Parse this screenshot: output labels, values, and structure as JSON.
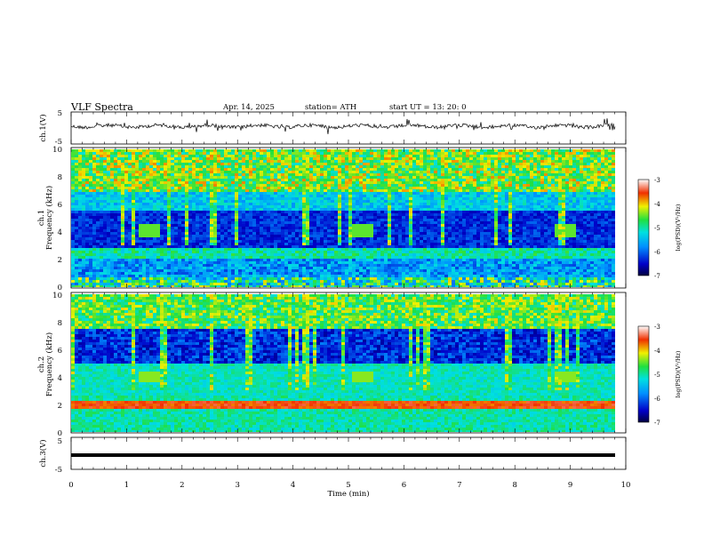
{
  "header": {
    "title": "VLF Spectra",
    "date": "Apr. 14, 2025",
    "station": "station= ATH",
    "start": "start  UT  =   13: 20: 0"
  },
  "chart_data": [
    {
      "type": "line",
      "panel": "ch1-waveform",
      "ylabel": "ch.1(V)",
      "ylim": [
        -5,
        5
      ],
      "yticks": [
        "5",
        "-5"
      ],
      "xlim": [
        0,
        10
      ],
      "series": [
        {
          "values_note": "noisy trace around 0 V",
          "color": "#000000"
        }
      ]
    },
    {
      "type": "heatmap",
      "panel": "ch1-spectrogram",
      "ylabel": "ch.1\nFrequency (kHz)",
      "ylabel_line1": "ch.1",
      "ylabel_line2": "Frequency (kHz)",
      "ylim": [
        0,
        10
      ],
      "yticks": [
        "0",
        "2",
        "4",
        "6",
        "8",
        "10"
      ],
      "xlim": [
        0,
        10
      ],
      "bright_patches_min": [
        1.4,
        5.2,
        8.9
      ],
      "colorbar": {
        "label": "log(PSD)(V²/Hz)",
        "min": -7,
        "max": -3,
        "ticks": [
          "-3",
          "-4",
          "-5",
          "-6",
          "-7"
        ]
      }
    },
    {
      "type": "heatmap",
      "panel": "ch2-spectrogram",
      "ylabel_line1": "ch.2",
      "ylabel_line2": "Frequency (kHz)",
      "ylim": [
        0,
        10
      ],
      "yticks": [
        "0",
        "2",
        "4",
        "6",
        "8",
        "10"
      ],
      "xlim": [
        0,
        10
      ],
      "colorbar": {
        "label": "log(PSD)(V²/Hz)",
        "min": -7,
        "max": -3,
        "ticks": [
          "-3",
          "-4",
          "-5",
          "-6",
          "-7"
        ]
      }
    },
    {
      "type": "line",
      "panel": "ch3-waveform",
      "ylabel": "ch.3(V)",
      "ylim": [
        -5,
        5
      ],
      "yticks": [
        "5",
        "-5"
      ],
      "xlim": [
        0,
        10
      ],
      "series": [
        {
          "values_note": "flat trace near -2 V",
          "color": "#000000"
        }
      ]
    }
  ],
  "xaxis": {
    "label": "Time  (min)",
    "ticks": [
      "0",
      "1",
      "2",
      "3",
      "4",
      "5",
      "6",
      "7",
      "8",
      "9",
      "10"
    ]
  },
  "colorbar_label": "log(PSD)(V²/Hz)"
}
